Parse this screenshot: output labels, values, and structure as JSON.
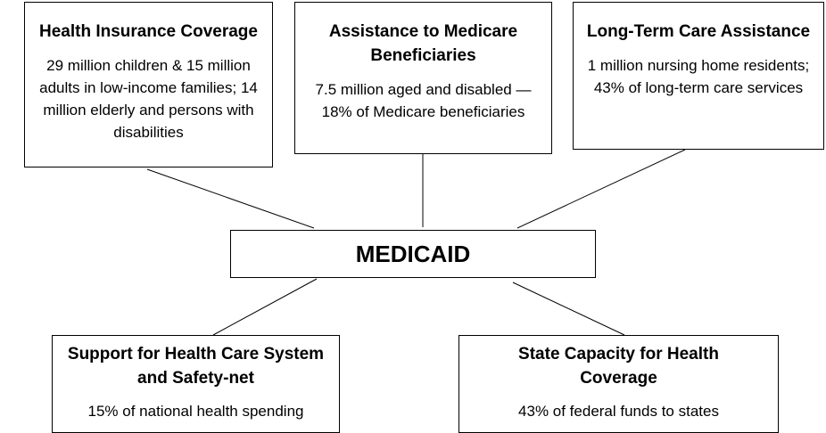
{
  "center": {
    "label": "MEDICAID"
  },
  "nodes": [
    {
      "title": "Health Insurance Coverage",
      "text": "29 million children & 15 million adults in low-income families; 14 million elderly and persons with disabilities"
    },
    {
      "title": "Assistance to Medicare Beneficiaries",
      "text": "7.5 million aged and disabled — 18% of Medicare beneficiaries"
    },
    {
      "title": "Long-Term Care Assistance",
      "text": "1 million nursing home residents; 43% of long-term care services"
    },
    {
      "title": "Support for Health Care System and Safety-net",
      "text": "15% of national health spending"
    },
    {
      "title": "State Capacity for Health Coverage",
      "text": "43% of federal funds to states"
    }
  ]
}
